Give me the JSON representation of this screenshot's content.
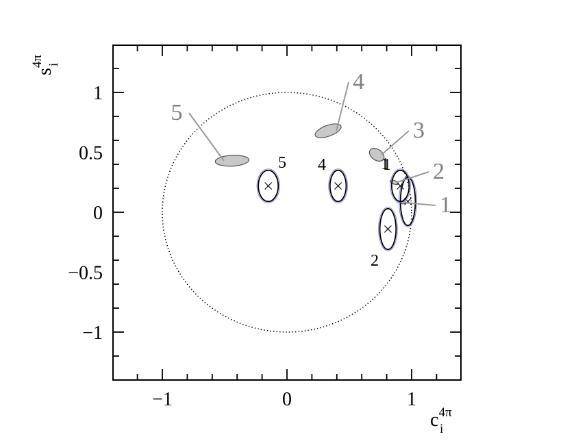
{
  "chart_data": {
    "type": "scatter",
    "title": "",
    "xlabel": {
      "base": "c",
      "sub": "i",
      "sup": "4π"
    },
    "ylabel": {
      "base": "s",
      "sub": "i",
      "sup": "4π"
    },
    "xlim": [
      -1.4,
      1.4
    ],
    "ylim": [
      -1.4,
      1.4
    ],
    "x_ticks": [
      {
        "value": -1,
        "label": "−1"
      },
      {
        "value": 0,
        "label": "0"
      },
      {
        "value": 1,
        "label": "1"
      }
    ],
    "y_ticks": [
      {
        "value": -1,
        "label": "−1"
      },
      {
        "value": -0.5,
        "label": "−0.5"
      },
      {
        "value": 0,
        "label": "0"
      },
      {
        "value": 0.5,
        "label": "0.5"
      },
      {
        "value": 1,
        "label": "1"
      }
    ],
    "minor_tick_step": 0.2,
    "grid": false,
    "unit_circle": {
      "radius": 1,
      "style": "dotted"
    },
    "measurements": [
      {
        "label": "1",
        "x": 0.97,
        "y": 0.09,
        "rx": 0.06,
        "ry": 0.2
      },
      {
        "label": "2",
        "x": 0.81,
        "y": -0.14,
        "rx": 0.065,
        "ry": 0.17
      },
      {
        "label": "1",
        "x": 0.91,
        "y": 0.22,
        "rx": 0.07,
        "ry": 0.13
      },
      {
        "label": "4",
        "x": 0.41,
        "y": 0.22,
        "rx": 0.065,
        "ry": 0.13
      },
      {
        "label": "5",
        "x": -0.15,
        "y": 0.22,
        "rx": 0.08,
        "ry": 0.13
      }
    ],
    "predictions": [
      {
        "label": "1",
        "x": 0.93,
        "y": 0.08,
        "rx": 0.025,
        "ry": 0.01,
        "angle": 0
      },
      {
        "label": "2",
        "x": 0.86,
        "y": 0.25,
        "rx": 0.035,
        "ry": 0.015,
        "angle": 20
      },
      {
        "label": "3",
        "x": 0.72,
        "y": 0.48,
        "rx": 0.065,
        "ry": 0.045,
        "angle": 35
      },
      {
        "label": "4",
        "x": 0.33,
        "y": 0.68,
        "rx": 0.11,
        "ry": 0.045,
        "angle": -20
      },
      {
        "label": "5",
        "x": -0.44,
        "y": 0.43,
        "rx": 0.135,
        "ry": 0.045,
        "angle": -3
      }
    ]
  }
}
